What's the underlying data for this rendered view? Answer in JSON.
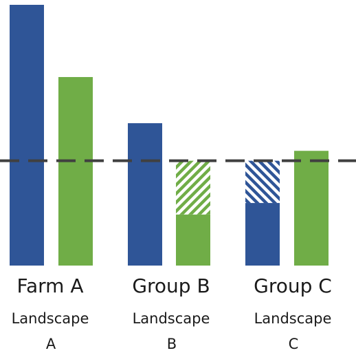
{
  "chart_data": {
    "type": "bar",
    "title": "",
    "xlabel": "",
    "ylabel": "",
    "ylim": [
      0,
      100
    ],
    "reference_line": {
      "value": 40.2,
      "style": "dashed",
      "color": "#404040"
    },
    "colors": {
      "blue": "#2f5597",
      "green": "#70ad47"
    },
    "groups": [
      {
        "name": "Farm A",
        "sublabel_lines": [
          "Landscape",
          "A"
        ],
        "bars": [
          {
            "series_color": "blue",
            "value": 100.0,
            "hatched_to": null
          },
          {
            "series_color": "green",
            "value": 72.3,
            "hatched_to": null
          }
        ]
      },
      {
        "name": "Group B",
        "sublabel_lines": [
          "Landscape",
          "B"
        ],
        "bars": [
          {
            "series_color": "blue",
            "value": 54.6,
            "hatched_to": null
          },
          {
            "series_color": "green",
            "value": 19.6,
            "hatched_to": 40.2
          }
        ]
      },
      {
        "name": "Group C",
        "sublabel_lines": [
          "Landscape",
          "C"
        ],
        "bars": [
          {
            "series_color": "blue",
            "value": 24.0,
            "hatched_to": 40.2
          },
          {
            "series_color": "green",
            "value": 44.0,
            "hatched_to": null
          }
        ]
      }
    ]
  }
}
